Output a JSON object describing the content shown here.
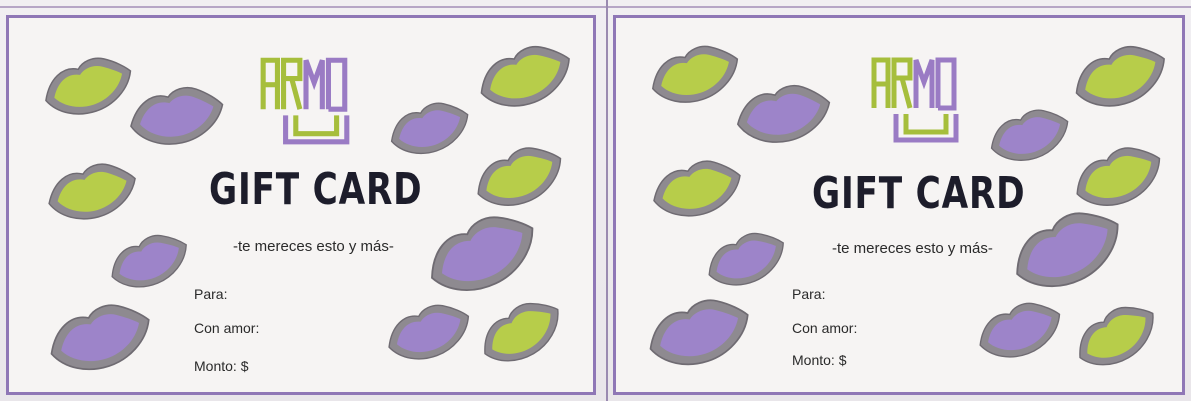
{
  "cards": [
    {
      "title": "GIFT CARD",
      "subtitle": "-te mereces esto y más-",
      "fields": {
        "para": "Para:",
        "con_amor": "Con amor:",
        "monto": "Monto: $"
      }
    },
    {
      "title": "GIFT CARD",
      "subtitle": "-te mereces esto y más-",
      "fields": {
        "para": "Para:",
        "con_amor": "Con amor:",
        "monto": "Monto: $"
      }
    }
  ],
  "logo": {
    "icon": "armon-logo",
    "colors": {
      "green": "#a6be3c",
      "purple": "#9a7bc4"
    }
  },
  "colors": {
    "border": "#8f77b6",
    "lip_green": "#b7cd4a",
    "lip_purple": "#9d84c9",
    "glitter": "#8f8b92",
    "title": "#1d1d2b"
  }
}
